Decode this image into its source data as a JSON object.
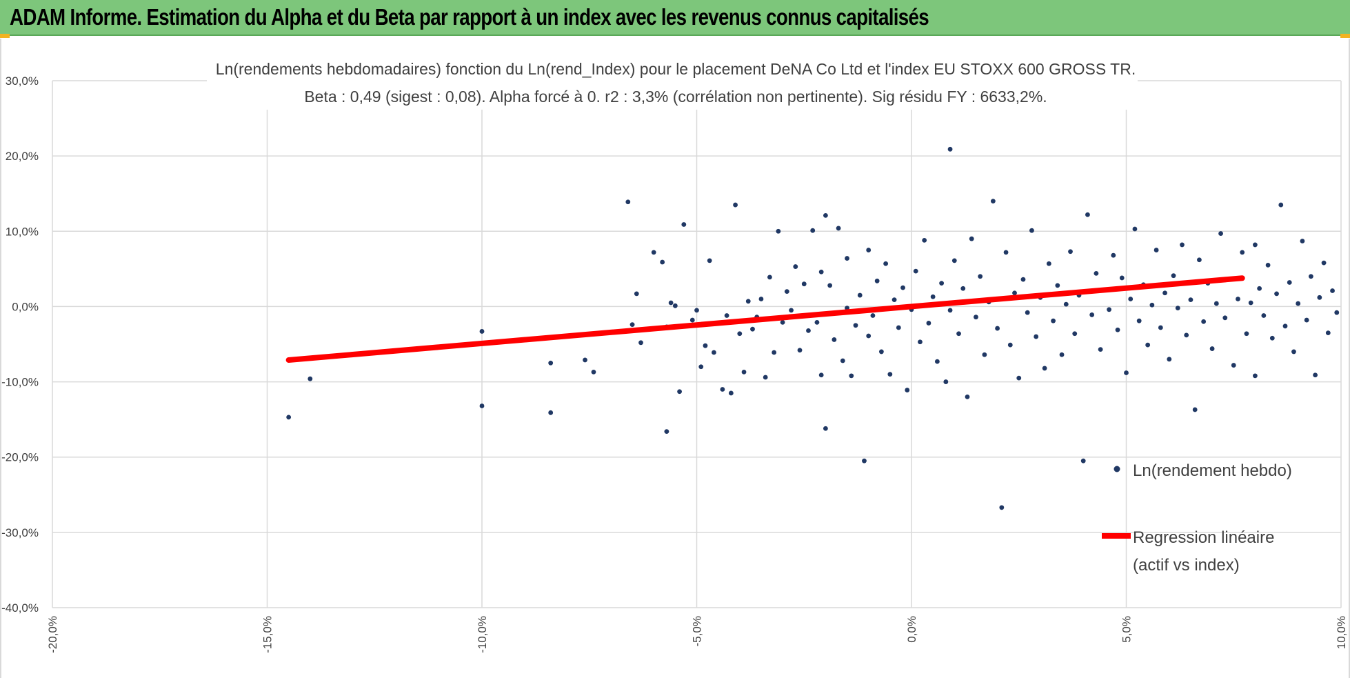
{
  "page": {
    "banner_title": "ADAM Informe. Estimation du Alpha et du Beta par rapport à un index avec les revenus connus capitalisés",
    "colors": {
      "banner": "#7dc67b",
      "corner_accent": "#f2b322",
      "points": "#203864",
      "regression": "#ff0000",
      "grid": "#d9d9d9",
      "text": "#404040"
    }
  },
  "chart_data": {
    "type": "scatter",
    "title_line1": "Ln(rendements hebdomadaires) fonction du Ln(rend_Index) pour le placement DeNA Co Ltd et l'index EU STOXX 600 GROSS TR.",
    "title_line2": "Beta : 0,49 (sigest : 0,08). Alpha forcé à 0. r2 : 3,3% (corrélation non pertinente). Sig résidu FY : 6633,2%.",
    "xlim": [
      -0.2,
      0.1
    ],
    "ylim": [
      -0.4,
      0.3
    ],
    "x_ticks": [
      -0.2,
      -0.15,
      -0.1,
      -0.05,
      0.0,
      0.05,
      0.1
    ],
    "x_tick_labels": [
      "-20,0%",
      "-15,0%",
      "-10,0%",
      "-5,0%",
      "0,0%",
      "5,0%",
      "10,0%"
    ],
    "y_ticks": [
      0.3,
      0.2,
      0.1,
      0.0,
      -0.1,
      -0.2,
      -0.3,
      -0.4
    ],
    "y_tick_labels": [
      "30,0%",
      "20,0%",
      "10,0%",
      "0,0%",
      "-10,0%",
      "-20,0%",
      "-30,0%",
      "-40,0%"
    ],
    "grid": true,
    "legend_position": "right",
    "series": [
      {
        "name": "Ln(rendement hebdo)",
        "kind": "points",
        "points": [
          [
            -0.145,
            -0.147
          ],
          [
            -0.14,
            -0.096
          ],
          [
            -0.1,
            -0.033
          ],
          [
            -0.1,
            -0.132
          ],
          [
            -0.084,
            -0.075
          ],
          [
            -0.084,
            -0.141
          ],
          [
            -0.076,
            -0.071
          ],
          [
            -0.074,
            -0.087
          ],
          [
            -0.066,
            0.139
          ],
          [
            -0.065,
            -0.024
          ],
          [
            -0.064,
            0.017
          ],
          [
            -0.063,
            -0.048
          ],
          [
            -0.06,
            0.072
          ],
          [
            -0.058,
            0.059
          ],
          [
            -0.057,
            -0.027
          ],
          [
            -0.057,
            -0.166
          ],
          [
            -0.056,
            0.005
          ],
          [
            -0.055,
            0.001
          ],
          [
            -0.054,
            -0.113
          ],
          [
            -0.053,
            0.109
          ],
          [
            -0.051,
            -0.018
          ],
          [
            -0.05,
            -0.005
          ],
          [
            -0.049,
            -0.08
          ],
          [
            -0.048,
            -0.052
          ],
          [
            -0.047,
            0.061
          ],
          [
            -0.046,
            -0.061
          ],
          [
            -0.045,
            -0.022
          ],
          [
            -0.044,
            -0.11
          ],
          [
            -0.043,
            -0.012
          ],
          [
            -0.042,
            -0.115
          ],
          [
            -0.041,
            0.135
          ],
          [
            -0.04,
            -0.036
          ],
          [
            -0.039,
            -0.087
          ],
          [
            -0.038,
            0.007
          ],
          [
            -0.037,
            -0.03
          ],
          [
            -0.036,
            -0.014
          ],
          [
            -0.035,
            0.01
          ],
          [
            -0.034,
            -0.094
          ],
          [
            -0.033,
            0.039
          ],
          [
            -0.032,
            -0.061
          ],
          [
            -0.031,
            0.1
          ],
          [
            -0.03,
            -0.021
          ],
          [
            -0.029,
            0.02
          ],
          [
            -0.028,
            -0.005
          ],
          [
            -0.027,
            0.053
          ],
          [
            -0.026,
            -0.058
          ],
          [
            -0.025,
            0.03
          ],
          [
            -0.024,
            -0.032
          ],
          [
            -0.023,
            0.101
          ],
          [
            -0.022,
            -0.021
          ],
          [
            -0.021,
            0.046
          ],
          [
            -0.021,
            -0.091
          ],
          [
            -0.02,
            0.121
          ],
          [
            -0.02,
            -0.162
          ],
          [
            -0.019,
            0.028
          ],
          [
            -0.018,
            -0.044
          ],
          [
            -0.017,
            0.104
          ],
          [
            -0.016,
            -0.072
          ],
          [
            -0.015,
            -0.002
          ],
          [
            -0.015,
            0.064
          ],
          [
            -0.014,
            -0.092
          ],
          [
            -0.013,
            -0.025
          ],
          [
            -0.012,
            0.015
          ],
          [
            -0.011,
            -0.205
          ],
          [
            -0.01,
            0.075
          ],
          [
            -0.01,
            -0.039
          ],
          [
            -0.009,
            -0.012
          ],
          [
            -0.008,
            0.034
          ],
          [
            -0.007,
            -0.06
          ],
          [
            -0.006,
            0.057
          ],
          [
            -0.005,
            -0.09
          ],
          [
            -0.004,
            0.009
          ],
          [
            -0.003,
            -0.028
          ],
          [
            -0.002,
            0.025
          ],
          [
            -0.001,
            -0.111
          ],
          [
            0.0,
            -0.004
          ],
          [
            0.001,
            0.047
          ],
          [
            0.002,
            -0.047
          ],
          [
            0.003,
            0.088
          ],
          [
            0.004,
            -0.022
          ],
          [
            0.005,
            0.013
          ],
          [
            0.006,
            -0.073
          ],
          [
            0.007,
            0.031
          ],
          [
            0.008,
            -0.1
          ],
          [
            0.009,
            0.209
          ],
          [
            0.009,
            -0.005
          ],
          [
            0.01,
            0.061
          ],
          [
            0.011,
            -0.036
          ],
          [
            0.012,
            0.024
          ],
          [
            0.013,
            -0.12
          ],
          [
            0.014,
            0.09
          ],
          [
            0.015,
            -0.014
          ],
          [
            0.016,
            0.04
          ],
          [
            0.017,
            -0.064
          ],
          [
            0.018,
            0.006
          ],
          [
            0.019,
            0.14
          ],
          [
            0.02,
            -0.029
          ],
          [
            0.021,
            -0.267
          ],
          [
            0.022,
            0.072
          ],
          [
            0.023,
            -0.051
          ],
          [
            0.024,
            0.018
          ],
          [
            0.025,
            -0.095
          ],
          [
            0.026,
            0.036
          ],
          [
            0.027,
            -0.008
          ],
          [
            0.028,
            0.101
          ],
          [
            0.029,
            -0.04
          ],
          [
            0.03,
            0.012
          ],
          [
            0.031,
            -0.082
          ],
          [
            0.032,
            0.057
          ],
          [
            0.033,
            -0.019
          ],
          [
            0.034,
            0.028
          ],
          [
            0.035,
            -0.064
          ],
          [
            0.036,
            0.003
          ],
          [
            0.037,
            0.073
          ],
          [
            0.038,
            -0.036
          ],
          [
            0.039,
            0.015
          ],
          [
            0.04,
            -0.205
          ],
          [
            0.041,
            0.122
          ],
          [
            0.042,
            -0.011
          ],
          [
            0.043,
            0.044
          ],
          [
            0.044,
            -0.057
          ],
          [
            0.045,
            0.022
          ],
          [
            0.046,
            -0.004
          ],
          [
            0.047,
            0.068
          ],
          [
            0.048,
            -0.031
          ],
          [
            0.049,
            0.038
          ],
          [
            0.05,
            -0.088
          ],
          [
            0.051,
            0.01
          ],
          [
            0.052,
            0.103
          ],
          [
            0.053,
            -0.019
          ],
          [
            0.054,
            0.029
          ],
          [
            0.055,
            -0.051
          ],
          [
            0.056,
            0.002
          ],
          [
            0.057,
            0.075
          ],
          [
            0.058,
            -0.028
          ],
          [
            0.059,
            0.018
          ],
          [
            0.06,
            -0.07
          ],
          [
            0.061,
            0.041
          ],
          [
            0.062,
            -0.002
          ],
          [
            0.063,
            0.082
          ],
          [
            0.064,
            -0.038
          ],
          [
            0.065,
            0.009
          ],
          [
            0.066,
            -0.137
          ],
          [
            0.067,
            0.062
          ],
          [
            0.068,
            -0.02
          ],
          [
            0.069,
            0.031
          ],
          [
            0.07,
            -0.056
          ],
          [
            0.071,
            0.004
          ],
          [
            0.072,
            0.097
          ],
          [
            0.073,
            -0.015
          ],
          [
            0.074,
            0.036
          ],
          [
            0.075,
            -0.078
          ],
          [
            0.076,
            0.01
          ],
          [
            0.077,
            0.072
          ],
          [
            0.078,
            -0.036
          ],
          [
            0.079,
            0.005
          ],
          [
            0.08,
            0.082
          ],
          [
            0.08,
            -0.092
          ],
          [
            0.081,
            0.024
          ],
          [
            0.082,
            -0.012
          ],
          [
            0.083,
            0.055
          ],
          [
            0.084,
            -0.042
          ],
          [
            0.085,
            0.017
          ],
          [
            0.086,
            0.135
          ],
          [
            0.087,
            -0.026
          ],
          [
            0.088,
            0.032
          ],
          [
            0.089,
            -0.06
          ],
          [
            0.09,
            0.004
          ],
          [
            0.091,
            0.087
          ],
          [
            0.092,
            -0.018
          ],
          [
            0.093,
            0.04
          ],
          [
            0.094,
            -0.091
          ],
          [
            0.095,
            0.012
          ],
          [
            0.096,
            0.058
          ],
          [
            0.097,
            -0.035
          ],
          [
            0.098,
            0.021
          ],
          [
            0.099,
            -0.008
          ]
        ]
      },
      {
        "name": "Regression linéaire",
        "name_line2": "(actif vs index)",
        "kind": "line",
        "beta": 0.49,
        "alpha": 0,
        "x_range": [
          -0.145,
          0.077
        ]
      }
    ]
  }
}
